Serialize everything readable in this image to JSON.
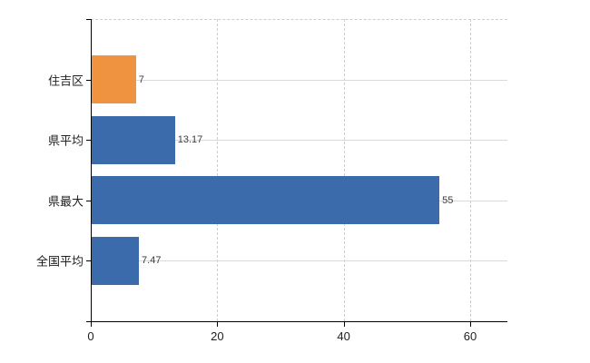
{
  "chart_data": {
    "type": "bar",
    "orientation": "horizontal",
    "title": "",
    "xlabel": "",
    "ylabel": "",
    "categories": [
      "住吉区",
      "県平均",
      "県最大",
      "全国平均"
    ],
    "values": [
      7,
      13.17,
      55,
      7.47
    ],
    "value_labels": [
      "7",
      "13.17",
      "55",
      "7.47"
    ],
    "bar_colors": [
      "#f09340",
      "#3c6bac",
      "#3c6bac",
      "#3c6bac"
    ],
    "x_ticks": [
      0,
      20,
      40,
      60
    ],
    "x_tick_labels": [
      "0",
      "20",
      "40",
      "60"
    ],
    "xlim": [
      0,
      66
    ],
    "grid": true,
    "legend_position": "none"
  },
  "style": {
    "background": "#ffffff",
    "bar_orange": "#f09340",
    "bar_blue": "#3c6bac",
    "gridline_solid": "#d9d9d9",
    "gridline_dashed": "#cdcdcd",
    "axis_color": "#000000",
    "tick_label_color": "#1f1f1f",
    "category_label_color": "#1f1f1f",
    "value_label_color": "#3c3c3c"
  }
}
